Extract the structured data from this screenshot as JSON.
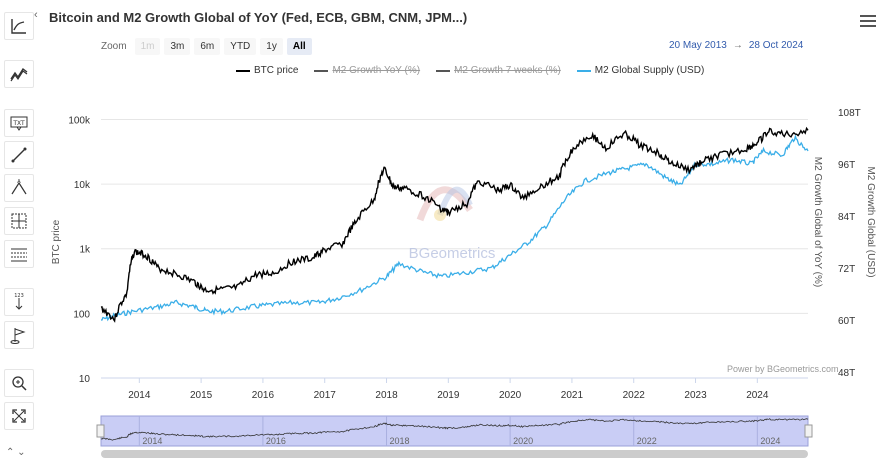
{
  "title": "Bitcoin and M2 Growth Global of YoY (Fed, ECB, GBM, CNM, JPM...)",
  "toolbar": {
    "zoom_label": "Zoom",
    "buttons": [
      {
        "label": "1m",
        "state": "disabled"
      },
      {
        "label": "3m",
        "state": "normal"
      },
      {
        "label": "6m",
        "state": "normal"
      },
      {
        "label": "YTD",
        "state": "normal"
      },
      {
        "label": "1y",
        "state": "normal"
      },
      {
        "label": "All",
        "state": "active"
      }
    ],
    "date_from": "20 May 2013",
    "date_sep": "→",
    "date_to": "28 Oct 2024"
  },
  "sidebar_tools": [
    "trend-icon",
    "wave-icon",
    "text-annotation-icon",
    "line-icon",
    "triangle-pattern-icon",
    "crosshair-grid-icon",
    "horizontal-lines-icon",
    "vertical-arrow-icon",
    "flag-icon",
    "zoom-icon",
    "fullscreen-icon"
  ],
  "credits": "Power by BGeometrics.com",
  "watermark": "BGeometrics",
  "colors": {
    "btc": "#000000",
    "m2supply": "#3aaee8",
    "m2yoy": "#555555",
    "m2_7w": "#555555",
    "navigator_fill": "#c9cdf5",
    "navigator_line": "#333333"
  },
  "chart_data": {
    "type": "line",
    "title": "Bitcoin and M2 Growth Global of YoY (Fed, ECB, GBM, CNM, JPM...)",
    "x_range": [
      "2013-05-20",
      "2024-10-28"
    ],
    "x_ticks": [
      "2014",
      "2015",
      "2016",
      "2017",
      "2018",
      "2019",
      "2020",
      "2021",
      "2022",
      "2023",
      "2024"
    ],
    "y_left": {
      "label": "BTC price",
      "scale": "log",
      "ticks": [
        "10",
        "100",
        "1k",
        "10k",
        "100k"
      ],
      "range": [
        10,
        200000
      ]
    },
    "y_right_1": {
      "label": "M2 Growth Global of YoY (%)"
    },
    "y_right_2": {
      "label": "M2 Growth Global (USD)",
      "ticks": [
        "48T",
        "60T",
        "72T",
        "84T",
        "96T",
        "108T"
      ],
      "range": [
        48,
        108
      ]
    },
    "legend": [
      {
        "name": "BTC price",
        "visible": true
      },
      {
        "name": "M2 Growth YoY (%)",
        "visible": false
      },
      {
        "name": "M2 Growth 7 weeks (%)",
        "visible": false
      },
      {
        "name": "M2 Global Supply (USD)",
        "visible": true
      }
    ],
    "series": [
      {
        "name": "BTC price",
        "axis": "left",
        "x": [
          2013.38,
          2013.6,
          2013.8,
          2013.92,
          2014.1,
          2014.3,
          2014.6,
          2014.9,
          2015.05,
          2015.3,
          2015.6,
          2015.9,
          2016.2,
          2016.5,
          2016.8,
          2017.0,
          2017.3,
          2017.5,
          2017.8,
          2017.96,
          2018.1,
          2018.3,
          2018.6,
          2018.9,
          2019.0,
          2019.3,
          2019.5,
          2019.8,
          2020.0,
          2020.2,
          2020.5,
          2020.8,
          2021.0,
          2021.3,
          2021.55,
          2021.85,
          2022.1,
          2022.4,
          2022.6,
          2022.9,
          2023.1,
          2023.4,
          2023.8,
          2024.0,
          2024.2,
          2024.5,
          2024.82
        ],
        "values": [
          120,
          80,
          200,
          900,
          800,
          500,
          400,
          300,
          230,
          230,
          250,
          400,
          420,
          650,
          700,
          950,
          1200,
          2500,
          5500,
          17000,
          9000,
          8500,
          6500,
          4000,
          3600,
          5000,
          11000,
          8000,
          9500,
          6000,
          9200,
          13000,
          33000,
          58000,
          35000,
          60000,
          40000,
          30000,
          21000,
          16500,
          22000,
          28000,
          34000,
          43000,
          65000,
          58000,
          68000
        ]
      },
      {
        "name": "M2 Global Supply (USD)",
        "axis": "right",
        "x": [
          2013.38,
          2013.6,
          2013.9,
          2014.3,
          2014.6,
          2014.9,
          2015.1,
          2015.4,
          2015.8,
          2016.1,
          2016.5,
          2016.9,
          2017.2,
          2017.6,
          2018.0,
          2018.2,
          2018.6,
          2018.9,
          2019.3,
          2019.7,
          2020.0,
          2020.3,
          2020.6,
          2020.9,
          2021.2,
          2021.6,
          2021.9,
          2022.2,
          2022.5,
          2022.75,
          2023.0,
          2023.3,
          2023.6,
          2023.9,
          2024.1,
          2024.4,
          2024.6,
          2024.82
        ],
        "values": [
          60,
          61,
          62,
          63,
          64,
          63,
          62,
          62,
          63,
          63.5,
          64,
          64,
          65,
          67,
          70,
          73,
          71,
          70,
          71,
          72,
          75,
          78,
          82,
          88,
          92,
          94,
          95,
          96,
          93,
          91,
          96,
          96,
          97,
          96,
          99,
          98,
          102,
          99
        ]
      }
    ]
  }
}
